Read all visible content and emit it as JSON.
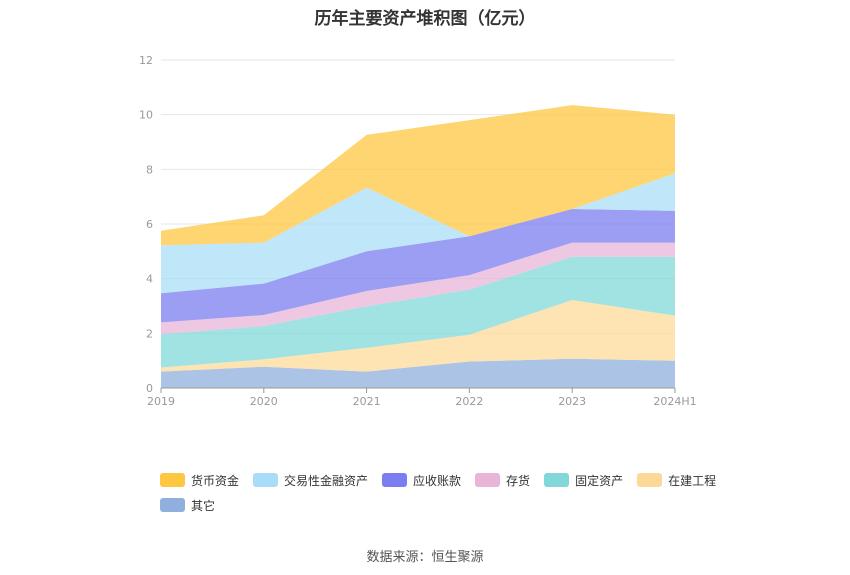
{
  "chart_data": {
    "type": "area",
    "stacked": true,
    "title": "历年主要资产堆积图（亿元）",
    "categories": [
      "2019",
      "2020",
      "2021",
      "2022",
      "2023",
      "2024H1"
    ],
    "ylim": [
      0,
      12
    ],
    "yticks": [
      0,
      2,
      4,
      6,
      8,
      10,
      12
    ],
    "grid": true,
    "legend_position": "bottom",
    "series": [
      {
        "name": "其它",
        "color": "#8fb0de",
        "values": [
          0.6,
          0.78,
          0.6,
          0.97,
          1.07,
          1.0
        ]
      },
      {
        "name": "在建工程",
        "color": "#fdd999",
        "values": [
          0.15,
          0.27,
          0.87,
          0.98,
          2.15,
          1.65
        ]
      },
      {
        "name": "固定资产",
        "color": "#82d8d8",
        "values": [
          1.22,
          1.22,
          1.52,
          1.65,
          1.58,
          2.15
        ]
      },
      {
        "name": "存货",
        "color": "#e8b5d8",
        "values": [
          0.43,
          0.4,
          0.56,
          0.53,
          0.52,
          0.52
        ]
      },
      {
        "name": "应收账款",
        "color": "#7b7ef0",
        "values": [
          1.07,
          1.15,
          1.45,
          1.42,
          1.23,
          1.16
        ]
      },
      {
        "name": "交易性金融资产",
        "color": "#a9ddf7",
        "values": [
          1.75,
          1.5,
          2.33,
          0.0,
          0.0,
          1.37
        ]
      },
      {
        "name": "货币资金",
        "color": "#fdc742",
        "values": [
          0.53,
          1.0,
          1.93,
          4.25,
          3.8,
          2.15
        ]
      }
    ]
  },
  "legend_order": [
    "货币资金",
    "交易性金融资产",
    "应收账款",
    "存货",
    "固定资产",
    "在建工程",
    "其它"
  ],
  "source": "数据来源：恒生聚源"
}
